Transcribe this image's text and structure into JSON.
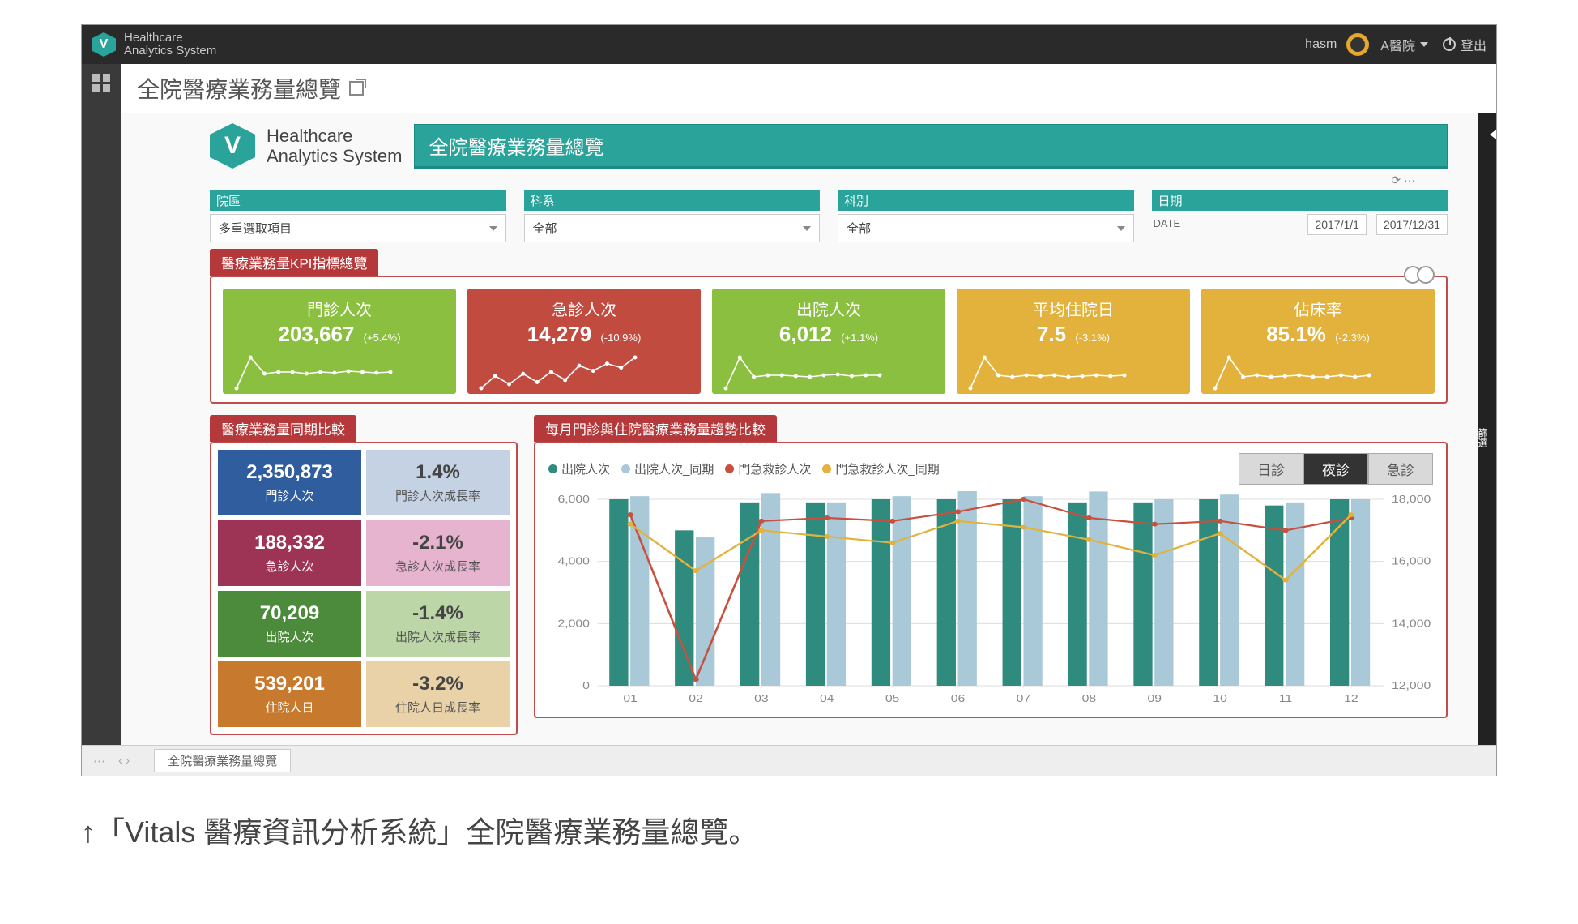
{
  "topbar": {
    "brand_line1": "Healthcare",
    "brand_line2": "Analytics System",
    "logo_letter": "V",
    "user": "hasm",
    "hospital": "A醫院",
    "logout": "登出"
  },
  "page_title": "全院醫療業務量總覽",
  "right_strip_label": "篩選",
  "banner": {
    "logo_letter": "V",
    "brand_line1": "Healthcare",
    "brand_line2": "Analytics System",
    "title": "全院醫療業務量總覽",
    "bg_color": "#2aa39a"
  },
  "mini_toolbar": "⟳  ···",
  "filters": [
    {
      "label": "院區",
      "value": "多重選取項目",
      "type": "select"
    },
    {
      "label": "科系",
      "value": "全部",
      "type": "select"
    },
    {
      "label": "科別",
      "value": "全部",
      "type": "select"
    },
    {
      "label": "日期",
      "type": "date",
      "date_type": "DATE",
      "from": "2017/1/1",
      "to": "2017/12/31"
    }
  ],
  "kpi_section": {
    "tab_label": "醫療業務量KPI指標總覽",
    "border_color": "#c24b4c",
    "cards": [
      {
        "title": "門診人次",
        "value": "203,667",
        "delta": "(+5.4%)",
        "bg": "#8bbf3f",
        "spark_color": "#ffffff",
        "spark": [
          10,
          48,
          28,
          30,
          30,
          28,
          30,
          29,
          31,
          30,
          29,
          30
        ]
      },
      {
        "title": "急診人次",
        "value": "14,279",
        "delta": "(-10.9%)",
        "bg": "#c24b3f",
        "spark_color": "#ffffff",
        "spark": [
          18,
          30,
          22,
          32,
          24,
          34,
          26,
          40,
          35,
          42,
          38,
          48
        ]
      },
      {
        "title": "出院人次",
        "value": "6,012",
        "delta": "(+1.1%)",
        "bg": "#8bbf3f",
        "spark_color": "#ffffff",
        "spark": [
          10,
          48,
          24,
          26,
          26,
          25,
          24,
          26,
          27,
          25,
          26,
          26
        ]
      },
      {
        "title": "平均住院日",
        "value": "7.5",
        "delta": "(-3.1%)",
        "bg": "#e3b23c",
        "spark_color": "#ffffff",
        "spark": [
          10,
          48,
          26,
          24,
          26,
          25,
          26,
          24,
          25,
          26,
          25,
          26
        ]
      },
      {
        "title": "佔床率",
        "value": "85.1%",
        "delta": "(-2.3%)",
        "bg": "#e3b23c",
        "spark_color": "#ffffff",
        "spark": [
          10,
          48,
          24,
          26,
          24,
          25,
          26,
          24,
          24,
          26,
          24,
          26
        ]
      }
    ]
  },
  "compare_section": {
    "tab_label": "醫療業務量同期比較",
    "cells": [
      {
        "value": "2,350,873",
        "label": "門診人次",
        "bg": "#2f5d9e",
        "text": "#ffffff"
      },
      {
        "value": "1.4%",
        "label": "門診人次成長率",
        "bg": "#c4d2e3",
        "text": "#444444",
        "light": true
      },
      {
        "value": "188,332",
        "label": "急診人次",
        "bg": "#9e3455",
        "text": "#ffffff"
      },
      {
        "value": "-2.1%",
        "label": "急診人次成長率",
        "bg": "#e6b4cf",
        "text": "#444444",
        "light": true
      },
      {
        "value": "70,209",
        "label": "出院人次",
        "bg": "#4d8b3c",
        "text": "#ffffff"
      },
      {
        "value": "-1.4%",
        "label": "出院人次成長率",
        "bg": "#bcd6a8",
        "text": "#444444",
        "light": true
      },
      {
        "value": "539,201",
        "label": "住院人日",
        "bg": "#c77a2e",
        "text": "#ffffff"
      },
      {
        "value": "-3.2%",
        "label": "住院人日成長率",
        "bg": "#e9d2a8",
        "text": "#444444",
        "light": true
      }
    ]
  },
  "trend_chart": {
    "tab_label": "每月門診與住院醫療業務量趨勢比較",
    "tabs": [
      {
        "label": "日診",
        "active": false
      },
      {
        "label": "夜診",
        "active": true
      },
      {
        "label": "急診",
        "active": false
      }
    ],
    "legend": [
      {
        "label": "出院人次",
        "color": "#2e8b7e",
        "shape": "dot"
      },
      {
        "label": "出院人次_同期",
        "color": "#a9c9d8",
        "shape": "dot"
      },
      {
        "label": "門急救診人次",
        "color": "#c94f3e",
        "shape": "dot"
      },
      {
        "label": "門急救診人次_同期",
        "color": "#e3b23c",
        "shape": "dot"
      }
    ],
    "type": "bar+line",
    "categories": [
      "01",
      "02",
      "03",
      "04",
      "05",
      "06",
      "07",
      "08",
      "09",
      "10",
      "11",
      "12"
    ],
    "y_left": {
      "min": 0,
      "max": 6000,
      "ticks": [
        0,
        2000,
        4000,
        6000
      ]
    },
    "y_right": {
      "min": 12000,
      "max": 18000,
      "ticks": [
        12000,
        14000,
        16000,
        18000
      ]
    },
    "bars": {
      "series": [
        {
          "name": "出院人次",
          "color": "#2e8b7e",
          "values": [
            6000,
            5000,
            5900,
            5900,
            6000,
            6000,
            6000,
            5900,
            5900,
            6000,
            5800,
            6000
          ]
        },
        {
          "name": "出院人次_同期",
          "color": "#a9c9d8",
          "values": [
            6100,
            4800,
            6200,
            5900,
            6100,
            6300,
            6100,
            6250,
            6000,
            6150,
            5900,
            6000
          ]
        }
      ],
      "bar_width": 0.32
    },
    "lines": {
      "series": [
        {
          "name": "門急救診人次",
          "color": "#c94f3e",
          "values": [
            17500,
            12200,
            17300,
            17400,
            17300,
            17600,
            18000,
            17400,
            17200,
            17300,
            17000,
            17400
          ]
        },
        {
          "name": "門急救診人次_同期",
          "color": "#e3b23c",
          "values": [
            17200,
            15700,
            17000,
            16800,
            16600,
            17300,
            17100,
            16700,
            16200,
            16900,
            15400,
            17500
          ]
        }
      ]
    },
    "background_color": "#ffffff",
    "grid_color": "#dddddd",
    "axis_fontsize": 13,
    "legend_fontsize": 15
  },
  "footer_tab": "全院醫療業務量總覽",
  "caption": "↑「Vitals 醫療資訊分析系統」全院醫療業務量總覽。"
}
